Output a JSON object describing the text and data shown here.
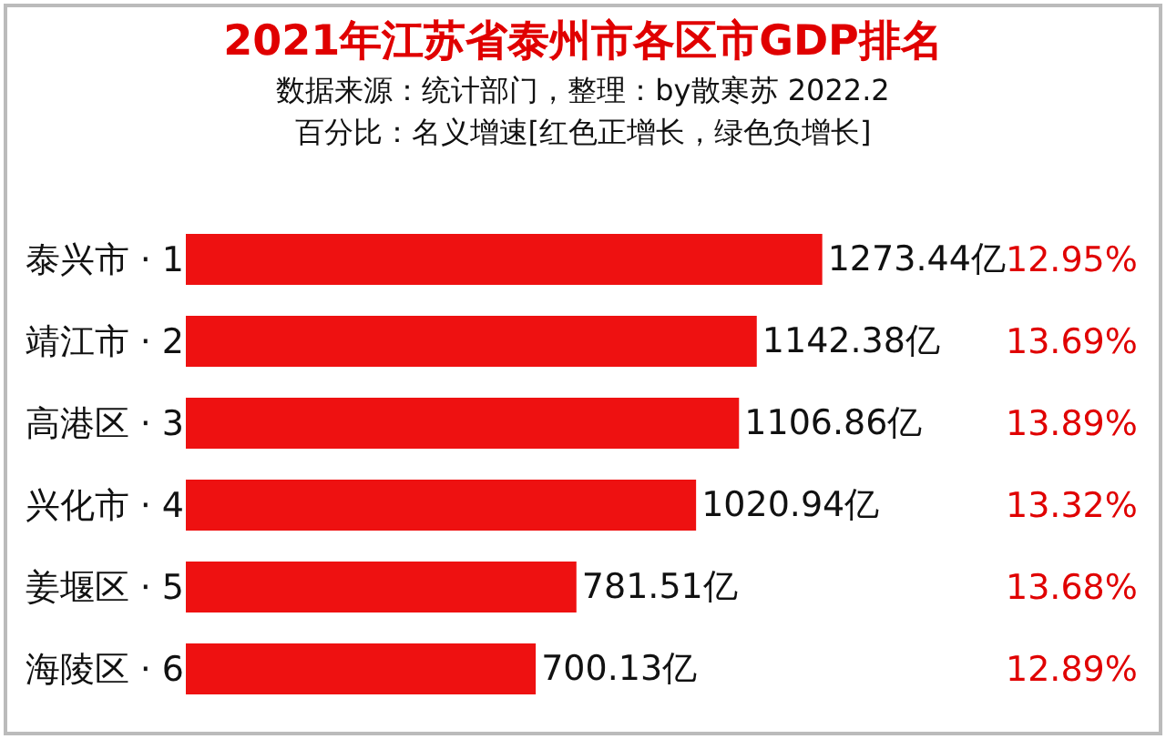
{
  "chart_data": {
    "type": "bar",
    "orientation": "horizontal",
    "title": "2021年江苏省泰州市各区市GDP排名",
    "subtitle": "数据来源：统计部门，整理：by散寒苏 2022.2\n百分比：名义增速[红色正增长，绿色负增长]",
    "categories": [
      "泰兴市 · 1",
      "靖江市 · 2",
      "高港区 · 3",
      "兴化市 · 4",
      "姜堰区 · 5",
      "海陵区 · 6"
    ],
    "values": [
      1273.44,
      1142.38,
      1106.86,
      1020.94,
      781.51,
      700.13
    ],
    "value_labels": [
      "1273.44亿",
      "1142.38亿",
      "1106.86亿",
      "1020.94亿",
      "781.51亿",
      "700.13亿"
    ],
    "color": "#ee1111",
    "annotations": [
      "12.95%",
      "13.69%",
      "13.89%",
      "13.32%",
      "13.68%",
      "12.89%"
    ]
  }
}
